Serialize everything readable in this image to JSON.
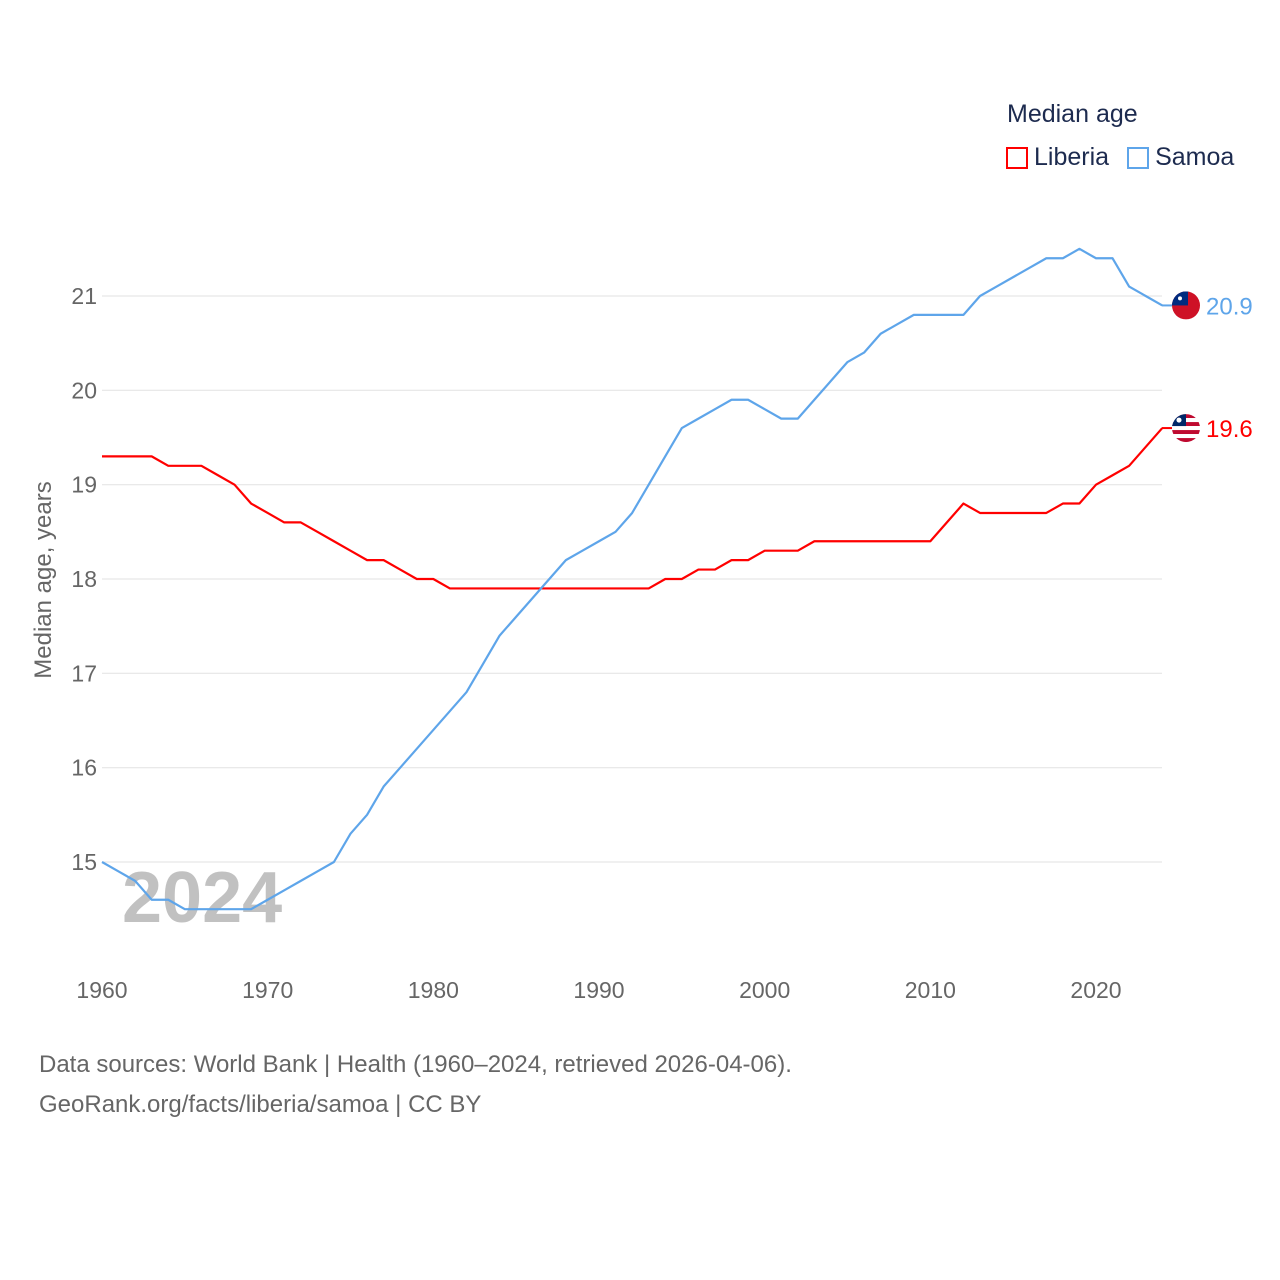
{
  "chart_data": {
    "type": "line",
    "title": "Median age",
    "ylabel": "Median age, years",
    "xlabel": "",
    "xlim": [
      1960,
      2024
    ],
    "ylim": [
      14.0,
      22.0
    ],
    "x_ticks": [
      1960,
      1970,
      1980,
      1990,
      2000,
      2010,
      2020
    ],
    "y_ticks": [
      15,
      16,
      17,
      18,
      19,
      20,
      21
    ],
    "grid": true,
    "legend_placement": "top-right",
    "watermark_year": "2024",
    "x": [
      1960,
      1961,
      1962,
      1963,
      1964,
      1965,
      1966,
      1967,
      1968,
      1969,
      1970,
      1971,
      1972,
      1973,
      1974,
      1975,
      1976,
      1977,
      1978,
      1979,
      1980,
      1981,
      1982,
      1983,
      1984,
      1985,
      1986,
      1987,
      1988,
      1989,
      1990,
      1991,
      1992,
      1993,
      1994,
      1995,
      1996,
      1997,
      1998,
      1999,
      2000,
      2001,
      2002,
      2003,
      2004,
      2005,
      2006,
      2007,
      2008,
      2009,
      2010,
      2011,
      2012,
      2013,
      2014,
      2015,
      2016,
      2017,
      2018,
      2019,
      2020,
      2021,
      2022,
      2023,
      2024
    ],
    "series": [
      {
        "name": "Liberia",
        "color": "#ff0000",
        "end_label": "19.6",
        "values": [
          19.3,
          19.3,
          19.3,
          19.3,
          19.2,
          19.2,
          19.2,
          19.1,
          19.0,
          18.8,
          18.7,
          18.6,
          18.6,
          18.5,
          18.4,
          18.3,
          18.2,
          18.2,
          18.1,
          18.0,
          18.0,
          17.9,
          17.9,
          17.9,
          17.9,
          17.9,
          17.9,
          17.9,
          17.9,
          17.9,
          17.9,
          17.9,
          17.9,
          17.9,
          18.0,
          18.0,
          18.1,
          18.1,
          18.2,
          18.2,
          18.3,
          18.3,
          18.3,
          18.4,
          18.4,
          18.4,
          18.4,
          18.4,
          18.4,
          18.4,
          18.4,
          18.6,
          18.8,
          18.7,
          18.7,
          18.7,
          18.7,
          18.7,
          18.8,
          18.8,
          19.0,
          19.1,
          19.2,
          19.4,
          19.6
        ]
      },
      {
        "name": "Samoa",
        "color": "#5ea5ea",
        "end_label": "20.9",
        "values": [
          15.0,
          14.9,
          14.8,
          14.6,
          14.6,
          14.5,
          14.5,
          14.5,
          14.5,
          14.5,
          14.6,
          14.7,
          14.8,
          14.9,
          15.0,
          15.3,
          15.5,
          15.8,
          16.0,
          16.2,
          16.4,
          16.6,
          16.8,
          17.1,
          17.4,
          17.6,
          17.8,
          18.0,
          18.2,
          18.3,
          18.4,
          18.5,
          18.7,
          19.0,
          19.3,
          19.6,
          19.7,
          19.8,
          19.9,
          19.9,
          19.8,
          19.7,
          19.7,
          19.9,
          20.1,
          20.3,
          20.4,
          20.6,
          20.7,
          20.8,
          20.8,
          20.8,
          20.8,
          21.0,
          21.1,
          21.2,
          21.3,
          21.4,
          21.4,
          21.5,
          21.4,
          21.4,
          21.1,
          21.0,
          20.9
        ]
      }
    ]
  },
  "footer": {
    "line1": "Data sources: World Bank | Health (1960–2024, retrieved 2026-04-06).",
    "line2": "GeoRank.org/facts/liberia/samoa | CC BY"
  }
}
